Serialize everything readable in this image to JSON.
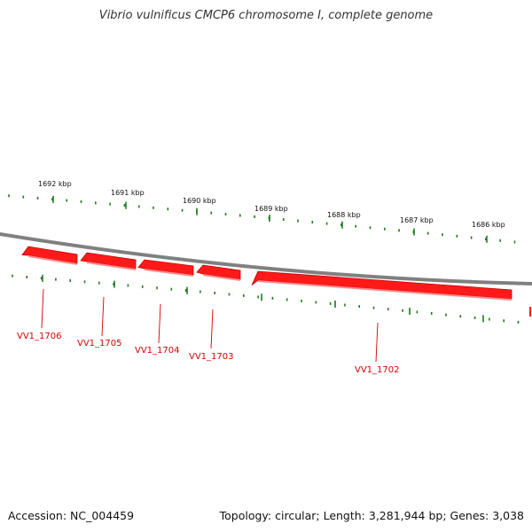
{
  "title": "Vibrio vulnificus CMCP6 chromosome I, complete genome",
  "footer": {
    "accession": "Accession: NC_004459",
    "topology": "Topology: circular; Length: 3,281,944 bp; Genes: 3,038"
  },
  "colors": {
    "backbone": "#808080",
    "gene": "#ff1a1a",
    "tick": "#1e7a1e",
    "gene_label": "#d40000"
  },
  "kbp_labels": [
    "1692 kbp",
    "1691 kbp",
    "1690 kbp",
    "1689 kbp",
    "1688 kbp",
    "1687 kbp",
    "1686 kbp"
  ],
  "genes": [
    "VV1_1706",
    "VV1_1705",
    "VV1_1704",
    "VV1_1703",
    "VV1_1702"
  ]
}
